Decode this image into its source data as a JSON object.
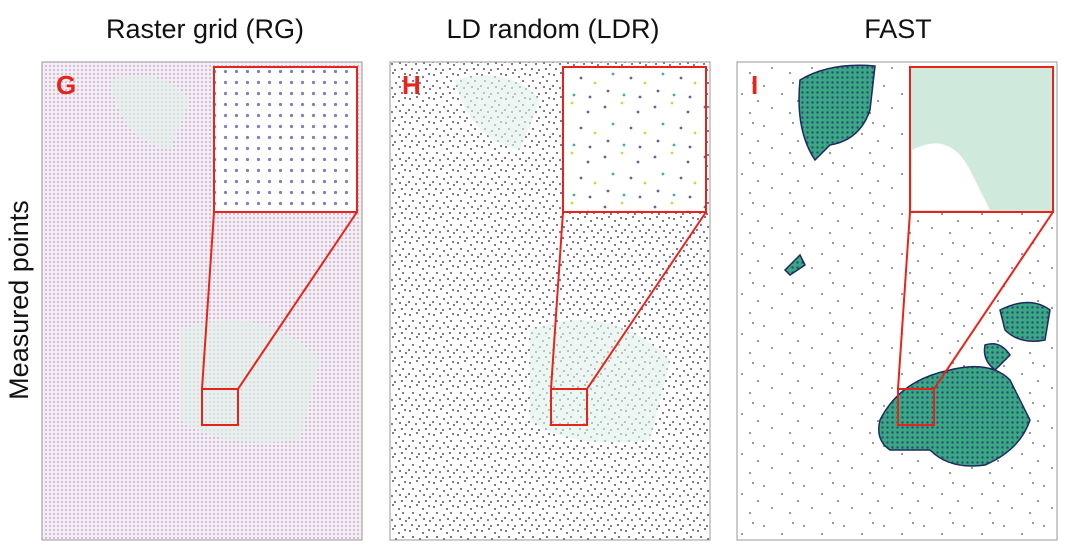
{
  "y_label": "Measured points",
  "panels": [
    {
      "title": "Raster grid (RG)",
      "label": "G"
    },
    {
      "title": "LD random (LDR)",
      "label": "H"
    },
    {
      "title": "FAST",
      "label": "I"
    }
  ]
}
